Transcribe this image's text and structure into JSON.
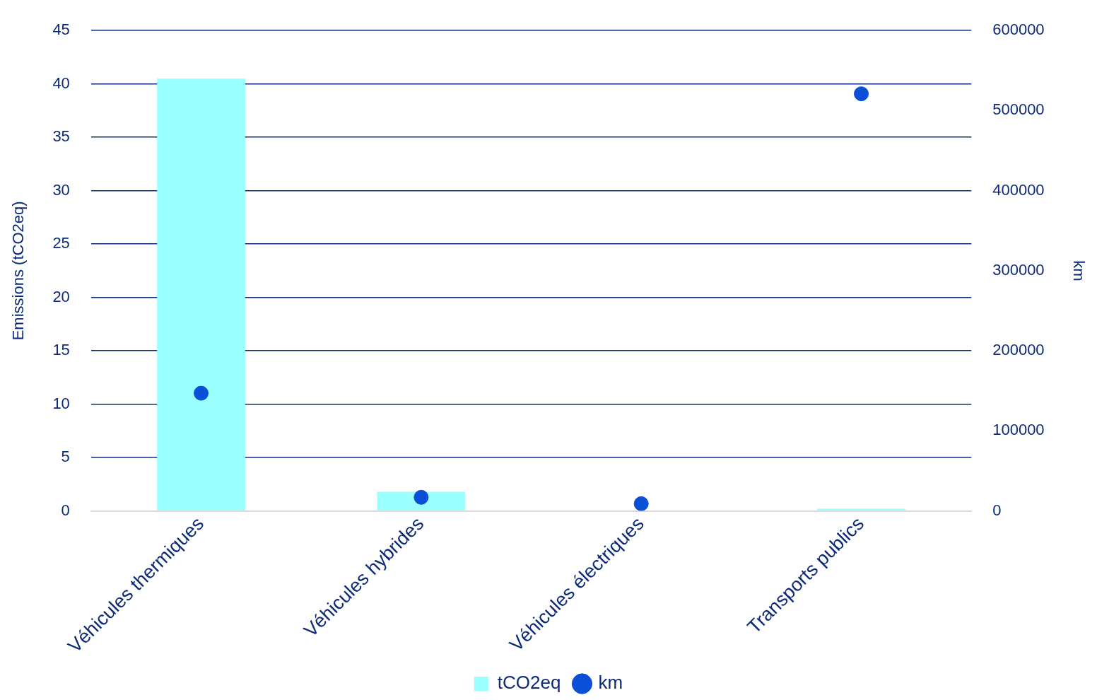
{
  "chart_data": {
    "type": "bar",
    "categories": [
      "Véhicules thermiques",
      "Véhicules hybrides",
      "Véhicules électriques",
      "Transports publics"
    ],
    "ylabel": "Emissions (tCO2eq)",
    "y2label": "km",
    "series": [
      {
        "name": "tCO2eq",
        "color": "#99ffff",
        "values": [
          40.5,
          1.8,
          0,
          0.2
        ]
      },
      {
        "name": "km",
        "type": "scatter",
        "axis": "y2",
        "color": "#0a4fd6",
        "values": [
          147000,
          17000,
          9000,
          521000
        ]
      }
    ],
    "ylim": [
      0,
      45
    ],
    "yticks": [
      0,
      5,
      10,
      15,
      20,
      25,
      30,
      35,
      40,
      45
    ],
    "y2lim": [
      0,
      600000
    ],
    "y2ticks": [
      0,
      100000,
      200000,
      300000,
      400000,
      500000,
      600000
    ],
    "grid": "y",
    "legend": "bottom",
    "marker": "circle"
  }
}
